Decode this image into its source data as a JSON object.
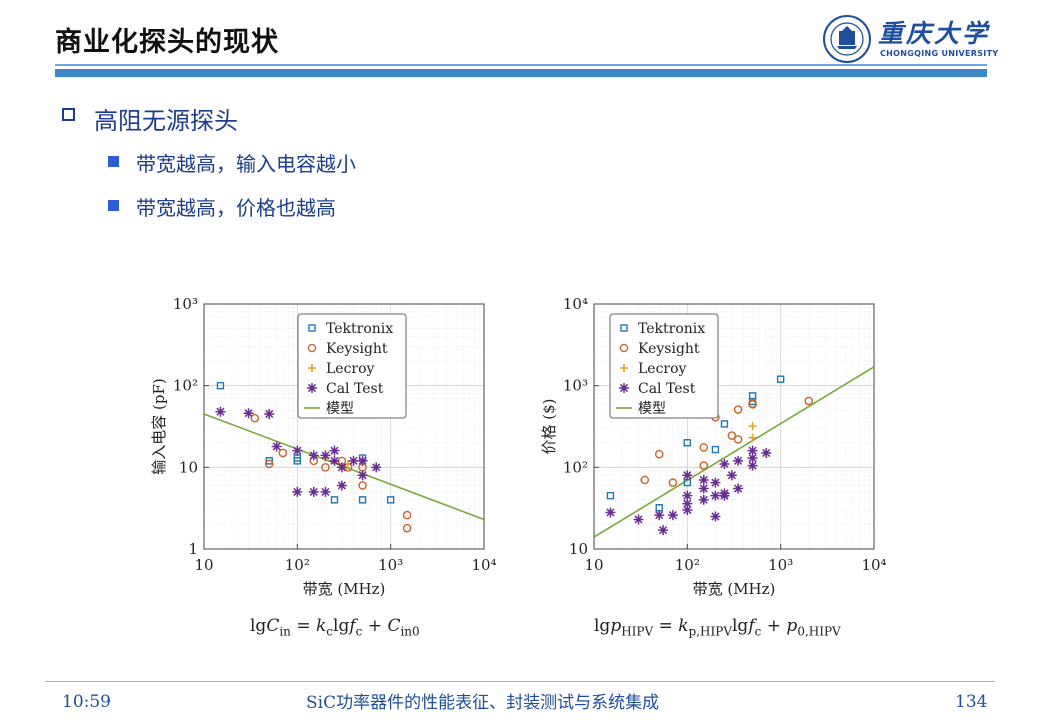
{
  "header": {
    "title": "商业化探头的现状",
    "logo_cn": "重庆大学",
    "logo_en": "CHONGQING UNIVERSITY"
  },
  "bullets": {
    "main": "高阻无源探头",
    "subs": [
      "带宽越高，输入电容越小",
      "带宽越高，价格也越高"
    ]
  },
  "footer": {
    "time": "10:59",
    "center": "SiC功率器件的性能表征、封装测试与系统集成",
    "page": "134"
  },
  "formulas": {
    "left": "lgC_in = k_c lgf_c + C_in0",
    "right": "lgp_HIPV = k_p,HIPV lgf_c + p_0,HIPV"
  },
  "colors": {
    "Tektronix": "#1f77b4",
    "Keysight": "#c8642a",
    "Lecroy": "#e0a020",
    "Cal Test": "#6a2c91",
    "模型": "#7aa83a"
  },
  "chart_data": [
    {
      "type": "scatter",
      "title": "",
      "xlabel": "带宽 (MHz)",
      "ylabel": "输入电容 (pF)",
      "xscale": "log",
      "yscale": "log",
      "xlim": [
        10,
        10000
      ],
      "ylim": [
        1,
        1000
      ],
      "x_ticks": [
        "10",
        "10²",
        "10³",
        "10⁴"
      ],
      "y_ticks": [
        "1",
        "10",
        "10²",
        "10³"
      ],
      "grid": true,
      "legend": "top-right",
      "series": [
        {
          "name": "Tektronix",
          "marker": "square",
          "points": [
            [
              15,
              100
            ],
            [
              50,
              12
            ],
            [
              100,
              12
            ],
            [
              100,
              13
            ],
            [
              200,
              110
            ],
            [
              250,
              4
            ],
            [
              500,
              4
            ],
            [
              500,
              13
            ],
            [
              1000,
              4
            ]
          ]
        },
        {
          "name": "Keysight",
          "marker": "circle",
          "points": [
            [
              35,
              40
            ],
            [
              50,
              11
            ],
            [
              70,
              15
            ],
            [
              150,
              12
            ],
            [
              200,
              10
            ],
            [
              300,
              12
            ],
            [
              350,
              10
            ],
            [
              500,
              6
            ],
            [
              500,
              10
            ],
            [
              1500,
              1.8
            ],
            [
              1500,
              2.6
            ]
          ]
        },
        {
          "name": "Lecroy",
          "marker": "plus",
          "points": [
            [
              200,
              13
            ],
            [
              350,
              11
            ]
          ]
        },
        {
          "name": "Cal Test",
          "marker": "asterisk",
          "points": [
            [
              15,
              48
            ],
            [
              30,
              46
            ],
            [
              50,
              45
            ],
            [
              60,
              18
            ],
            [
              100,
              16
            ],
            [
              100,
              5
            ],
            [
              150,
              5
            ],
            [
              150,
              14
            ],
            [
              200,
              5
            ],
            [
              200,
              14
            ],
            [
              250,
              16
            ],
            [
              250,
              12
            ],
            [
              300,
              6
            ],
            [
              300,
              10
            ],
            [
              400,
              12
            ],
            [
              500,
              8
            ],
            [
              500,
              12
            ],
            [
              700,
              10
            ]
          ]
        },
        {
          "name": "模型",
          "marker": "line",
          "points": [
            [
              10,
              45
            ],
            [
              10000,
              2.3
            ]
          ]
        }
      ]
    },
    {
      "type": "scatter",
      "title": "",
      "xlabel": "带宽 (MHz)",
      "ylabel": "价格 ($)",
      "xscale": "log",
      "yscale": "log",
      "xlim": [
        10,
        10000
      ],
      "ylim": [
        10,
        10000
      ],
      "x_ticks": [
        "10",
        "10²",
        "10³",
        "10⁴"
      ],
      "y_ticks": [
        "10",
        "10²",
        "10³",
        "10⁴"
      ],
      "grid": true,
      "legend": "top-left",
      "series": [
        {
          "name": "Tektronix",
          "marker": "square",
          "points": [
            [
              15,
              45
            ],
            [
              50,
              32
            ],
            [
              100,
              200
            ],
            [
              100,
              65
            ],
            [
              200,
              165
            ],
            [
              250,
              340
            ],
            [
              500,
              750
            ],
            [
              500,
              640
            ],
            [
              1000,
              1200
            ]
          ]
        },
        {
          "name": "Keysight",
          "marker": "circle",
          "points": [
            [
              35,
              70
            ],
            [
              50,
              145
            ],
            [
              70,
              65
            ],
            [
              150,
              175
            ],
            [
              150,
              105
            ],
            [
              200,
              410
            ],
            [
              300,
              245
            ],
            [
              350,
              510
            ],
            [
              350,
              220
            ],
            [
              500,
              590
            ],
            [
              500,
              600
            ],
            [
              2000,
              650
            ]
          ]
        },
        {
          "name": "Lecroy",
          "marker": "plus",
          "points": [
            [
              500,
              230
            ],
            [
              500,
              320
            ]
          ]
        },
        {
          "name": "Cal Test",
          "marker": "asterisk",
          "points": [
            [
              15,
              28
            ],
            [
              30,
              23
            ],
            [
              50,
              26
            ],
            [
              55,
              17
            ],
            [
              70,
              26
            ],
            [
              100,
              30
            ],
            [
              100,
              36
            ],
            [
              100,
              45
            ],
            [
              100,
              80
            ],
            [
              150,
              40
            ],
            [
              150,
              55
            ],
            [
              150,
              70
            ],
            [
              200,
              45
            ],
            [
              200,
              65
            ],
            [
              200,
              25
            ],
            [
              250,
              45
            ],
            [
              250,
              48
            ],
            [
              250,
              110
            ],
            [
              300,
              80
            ],
            [
              350,
              55
            ],
            [
              350,
              120
            ],
            [
              500,
              105
            ],
            [
              500,
              130
            ],
            [
              500,
              160
            ],
            [
              700,
              150
            ]
          ]
        },
        {
          "name": "模型",
          "marker": "line",
          "points": [
            [
              10,
              14
            ],
            [
              10000,
              1700
            ]
          ]
        }
      ]
    }
  ]
}
